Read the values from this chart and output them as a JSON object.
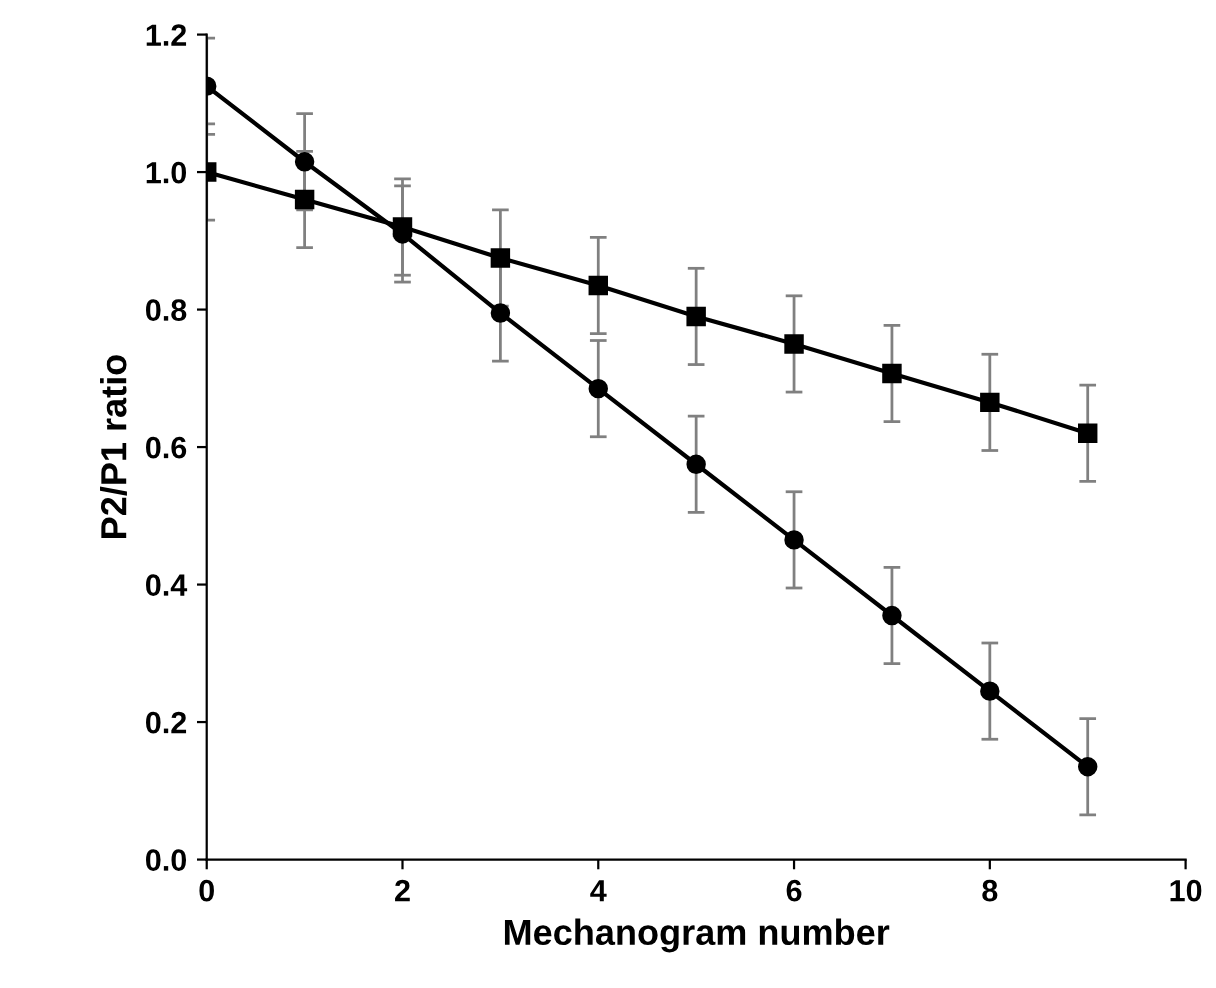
{
  "chart_data": {
    "type": "line",
    "xlabel": "Mechanogram number",
    "ylabel": "P2/P1 ratio",
    "x": [
      0,
      1,
      2,
      3,
      4,
      5,
      6,
      7,
      8,
      9
    ],
    "series": [
      {
        "color": "#000000",
        "marker": "circle",
        "values": [
          1.125,
          1.015,
          0.91,
          0.795,
          0.685,
          0.575,
          0.465,
          0.355,
          0.245,
          0.135
        ],
        "errors": [
          0.07,
          0.07,
          0.07,
          0.07,
          0.07,
          0.07,
          0.07,
          0.07,
          0.07,
          0.07
        ]
      },
      {
        "color": "#000000",
        "marker": "square",
        "values": [
          1.0,
          0.96,
          0.92,
          0.875,
          0.835,
          0.79,
          0.75,
          0.707,
          0.665,
          0.62
        ],
        "errors": [
          0.07,
          0.07,
          0.07,
          0.07,
          0.07,
          0.07,
          0.07,
          0.07,
          0.07,
          0.07
        ]
      }
    ],
    "xlim": [
      0,
      10
    ],
    "xticks": [
      0,
      2,
      4,
      6,
      8,
      10
    ],
    "ylim": [
      0,
      1.2
    ],
    "yticks": [
      {
        "value": 0,
        "label": "0.0"
      },
      {
        "value": 0.2,
        "label": "0.2"
      },
      {
        "value": 0.4,
        "label": "0.4"
      },
      {
        "value": 0.6,
        "label": "0.6"
      },
      {
        "value": 0.8,
        "label": "0.8"
      },
      {
        "value": 1.0,
        "label": "1.0"
      },
      {
        "value": 1.2,
        "label": "1.2"
      }
    ],
    "grid": false,
    "legend": false,
    "line_style": "solid"
  }
}
